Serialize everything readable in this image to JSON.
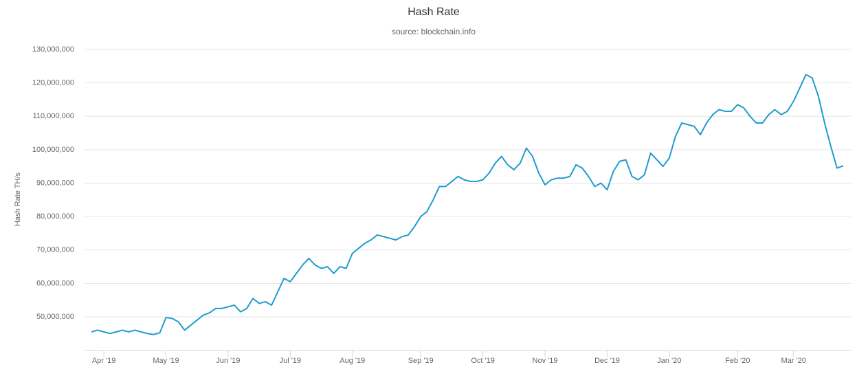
{
  "chart_data": {
    "type": "line",
    "title": "Hash Rate",
    "subtitle": "source: blockchain.info",
    "y_label": "Hash Rate TH/s",
    "categories": [
      null,
      null,
      "Apr '19",
      null,
      null,
      null,
      null,
      null,
      null,
      null,
      null,
      null,
      "May '19",
      null,
      null,
      null,
      null,
      null,
      null,
      null,
      null,
      null,
      "Jun '19",
      null,
      null,
      null,
      null,
      null,
      null,
      null,
      null,
      null,
      "Jul '19",
      null,
      null,
      null,
      null,
      null,
      null,
      null,
      null,
      null,
      "Aug '19",
      null,
      null,
      null,
      null,
      null,
      null,
      null,
      null,
      null,
      null,
      "Sep '19",
      null,
      null,
      null,
      null,
      null,
      null,
      null,
      null,
      null,
      "Oct '19",
      null,
      null,
      null,
      null,
      null,
      null,
      null,
      null,
      null,
      "Nov '19",
      null,
      null,
      null,
      null,
      null,
      null,
      null,
      null,
      null,
      "Dec '19",
      null,
      null,
      null,
      null,
      null,
      null,
      null,
      null,
      null,
      "Jan '20",
      null,
      null,
      null,
      null,
      null,
      null,
      null,
      null,
      null,
      null,
      "Feb '20",
      null,
      null,
      null,
      null,
      null,
      null,
      null,
      null,
      "Mar '20",
      null,
      null,
      null,
      null,
      null,
      null,
      null,
      null
    ],
    "series": [
      {
        "name": "Hash Rate",
        "color": "#1f9bcf",
        "values": [
          45500000,
          46000000,
          45500000,
          45000000,
          45500000,
          46000000,
          45500000,
          46000000,
          45500000,
          45000000,
          44700000,
          45200000,
          49800000,
          49500000,
          48500000,
          46000000,
          47500000,
          49000000,
          50500000,
          51200000,
          52500000,
          52500000,
          53000000,
          53500000,
          51500000,
          52500000,
          55500000,
          54000000,
          54500000,
          53500000,
          57500000,
          61500000,
          60500000,
          63000000,
          65500000,
          67500000,
          65500000,
          64500000,
          65000000,
          63000000,
          65000000,
          64500000,
          69000000,
          70500000,
          72000000,
          73000000,
          74500000,
          74000000,
          73500000,
          73000000,
          74000000,
          74500000,
          77000000,
          80000000,
          81500000,
          85000000,
          89000000,
          89000000,
          90500000,
          92000000,
          91000000,
          90500000,
          90500000,
          91000000,
          93000000,
          96000000,
          98000000,
          95500000,
          94000000,
          96000000,
          100500000,
          98000000,
          93000000,
          89500000,
          91000000,
          91500000,
          91500000,
          92000000,
          95500000,
          94500000,
          92000000,
          89000000,
          90000000,
          88000000,
          93500000,
          96500000,
          97000000,
          92000000,
          91000000,
          92500000,
          99000000,
          97000000,
          95000000,
          97500000,
          104000000,
          108000000,
          107500000,
          107000000,
          104500000,
          108000000,
          110500000,
          112000000,
          111500000,
          111500000,
          113500000,
          112500000,
          110000000,
          108000000,
          108000000,
          110500000,
          112000000,
          110500000,
          111500000,
          114500000,
          118500000,
          122500000,
          121500000,
          116000000,
          108000000,
          101000000,
          94500000,
          95200000
        ]
      }
    ],
    "ylim": [
      40000000,
      130000000
    ],
    "yticks": [
      {
        "value": 50000000,
        "label": "50,000,000"
      },
      {
        "value": 60000000,
        "label": "60,000,000"
      },
      {
        "value": 70000000,
        "label": "70,000,000"
      },
      {
        "value": 80000000,
        "label": "80,000,000"
      },
      {
        "value": 90000000,
        "label": "90,000,000"
      },
      {
        "value": 100000000,
        "label": "100,000,000"
      },
      {
        "value": 110000000,
        "label": "110,000,000"
      },
      {
        "value": 120000000,
        "label": "120,000,000"
      },
      {
        "value": 130000000,
        "label": "130,000,000"
      }
    ],
    "grid": true
  }
}
